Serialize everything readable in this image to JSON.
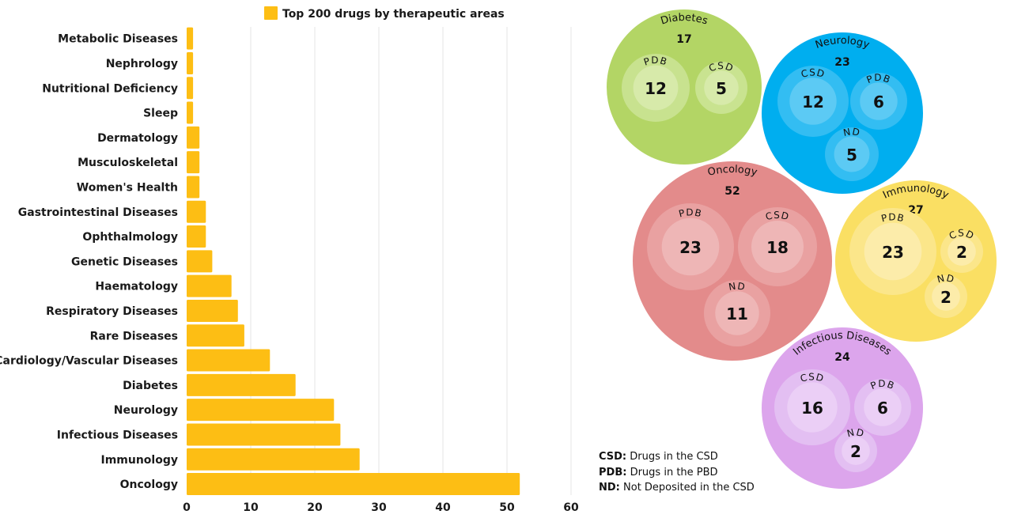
{
  "chart_data": [
    {
      "type": "bar",
      "orientation": "horizontal",
      "title": "Top 200 drugs by therapeutic areas",
      "legend": {
        "label": "Top 200 drugs by therapeutic areas",
        "position": "top-center",
        "color": "#fdbe14"
      },
      "xlabel": "",
      "ylabel": "",
      "xlim": [
        0,
        60
      ],
      "xticks": [
        0,
        10,
        20,
        30,
        40,
        50,
        60
      ],
      "grid": true,
      "bar_color": "#fdbe14",
      "categories": [
        "Metabolic Diseases",
        "Nephrology",
        "Nutritional Deficiency",
        "Sleep",
        "Dermatology",
        "Musculoskeletal",
        "Women's Health",
        "Gastrointestinal Diseases",
        "Ophthalmology",
        "Genetic Diseases",
        "Haematology",
        "Respiratory Diseases",
        "Rare Diseases",
        "Cardiology/Vascular Diseases",
        "Diabetes",
        "Neurology",
        "Infectious Diseases",
        "Immunology",
        "Oncology"
      ],
      "values": [
        1,
        1,
        1,
        1,
        2,
        2,
        2,
        3,
        3,
        4,
        7,
        8,
        9,
        13,
        17,
        23,
        24,
        27,
        52
      ]
    },
    {
      "type": "bubble",
      "title": "",
      "groups": [
        {
          "name": "Diabetes",
          "total": 17,
          "color": "#b3d565",
          "children": [
            {
              "label": "PDB",
              "value": 12
            },
            {
              "label": "CSD",
              "value": 5
            }
          ]
        },
        {
          "name": "Neurology",
          "total": 23,
          "color": "#00aeef",
          "children": [
            {
              "label": "CSD",
              "value": 12
            },
            {
              "label": "PDB",
              "value": 6
            },
            {
              "label": "ND",
              "value": 5
            }
          ]
        },
        {
          "name": "Oncology",
          "total": 52,
          "color": "#e38b8b",
          "children": [
            {
              "label": "PDB",
              "value": 23
            },
            {
              "label": "CSD",
              "value": 18
            },
            {
              "label": "ND",
              "value": 11
            }
          ]
        },
        {
          "name": "Immunology",
          "total": 27,
          "color": "#fadf63",
          "children": [
            {
              "label": "PDB",
              "value": 23
            },
            {
              "label": "CSD",
              "value": 2
            },
            {
              "label": "ND",
              "value": 2
            }
          ]
        },
        {
          "name": "Infectious Diseases",
          "total": 24,
          "color": "#dca5ec",
          "children": [
            {
              "label": "CSD",
              "value": 16
            },
            {
              "label": "PDB",
              "value": 6
            },
            {
              "label": "ND",
              "value": 2
            }
          ]
        }
      ]
    }
  ],
  "key": [
    {
      "abbr": "CSD:",
      "desc": "Drugs in the CSD"
    },
    {
      "abbr": "PDB:",
      "desc": "Drugs in the PBD"
    },
    {
      "abbr": "ND:",
      "desc": "Not Deposited in the CSD"
    }
  ]
}
